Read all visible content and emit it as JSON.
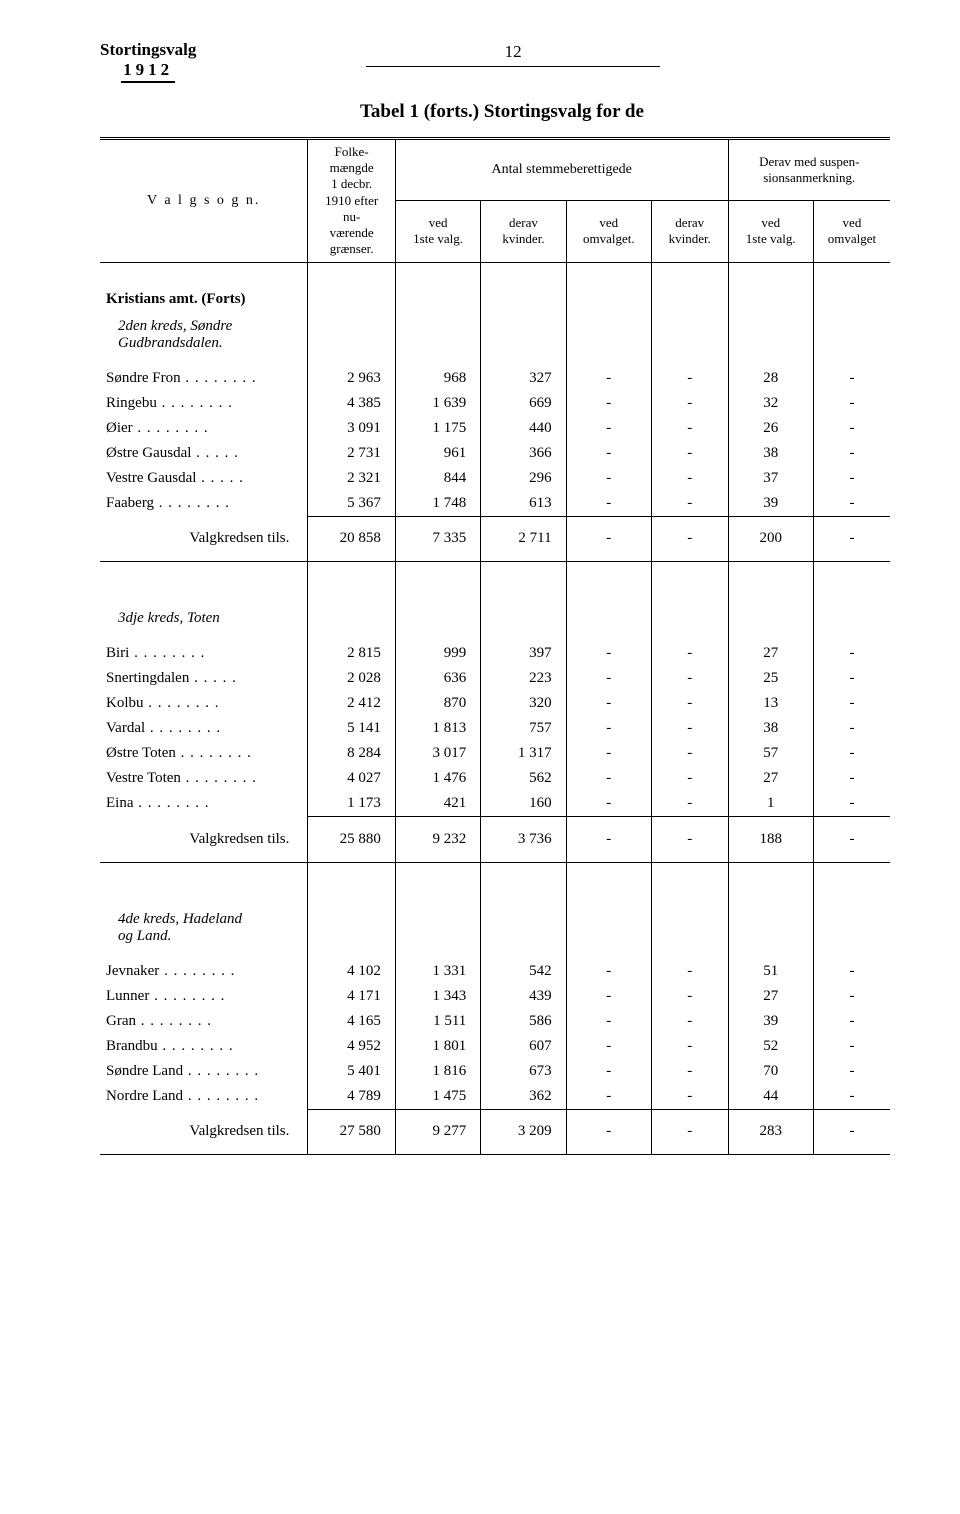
{
  "header": {
    "title_left_line1": "Stortingsvalg",
    "title_left_line2": "1912",
    "page_number": "12",
    "table_title": "Tabel 1 (forts.)  Stortingsvalg for de"
  },
  "columns": {
    "valgsogn": "V a l g s o g n.",
    "folkemaengde": "Folke-\nmængde\n1 decbr.\n1910 efter\nnu-\nværende\ngrænser.",
    "antal_header": "Antal stemmeberettigede",
    "derav_susp_header": "Derav med suspen-\nsionsanmerkning.",
    "col_a": "ved\n1ste valg.",
    "col_b": "derav\nkvinder.",
    "col_c": "ved\nomvalget.",
    "col_d": "derav\nkvinder.",
    "col_e": "ved\n1ste valg.",
    "col_f": "ved\nomvalget"
  },
  "sections": [
    {
      "heading": "Kristians amt.  (Forts)",
      "subheading": "2den kreds, Søndre\n  Gudbrandsdalen.",
      "rows": [
        {
          "label": "Søndre Fron",
          "c1": "2 963",
          "c2": "968",
          "c3": "327",
          "c4": "-",
          "c5": "-",
          "c6": "28",
          "c7": "-"
        },
        {
          "label": "Ringebu",
          "c1": "4 385",
          "c2": "1 639",
          "c3": "669",
          "c4": "-",
          "c5": "-",
          "c6": "32",
          "c7": "-"
        },
        {
          "label": "Øier",
          "c1": "3 091",
          "c2": "1 175",
          "c3": "440",
          "c4": "-",
          "c5": "-",
          "c6": "26",
          "c7": "-"
        },
        {
          "label": "Østre Gausdal",
          "c1": "2 731",
          "c2": "961",
          "c3": "366",
          "c4": "-",
          "c5": "-",
          "c6": "38",
          "c7": "-"
        },
        {
          "label": "Vestre Gausdal",
          "c1": "2 321",
          "c2": "844",
          "c3": "296",
          "c4": "-",
          "c5": "-",
          "c6": "37",
          "c7": "-"
        },
        {
          "label": "Faaberg",
          "c1": "5 367",
          "c2": "1 748",
          "c3": "613",
          "c4": "-",
          "c5": "-",
          "c6": "39",
          "c7": "-"
        }
      ],
      "tils_label": "Valgkredsen tils.",
      "tils": {
        "c1": "20 858",
        "c2": "7 335",
        "c3": "2 711",
        "c4": "-",
        "c5": "-",
        "c6": "200",
        "c7": "-"
      }
    },
    {
      "subheading": "3dje kreds, Toten",
      "rows": [
        {
          "label": "Biri",
          "c1": "2 815",
          "c2": "999",
          "c3": "397",
          "c4": "-",
          "c5": "-",
          "c6": "27",
          "c7": "-"
        },
        {
          "label": "Snertingdalen",
          "c1": "2 028",
          "c2": "636",
          "c3": "223",
          "c4": "-",
          "c5": "-",
          "c6": "25",
          "c7": "-"
        },
        {
          "label": "Kolbu",
          "c1": "2 412",
          "c2": "870",
          "c3": "320",
          "c4": "-",
          "c5": "-",
          "c6": "13",
          "c7": "-"
        },
        {
          "label": "Vardal",
          "c1": "5 141",
          "c2": "1 813",
          "c3": "757",
          "c4": "-",
          "c5": "-",
          "c6": "38",
          "c7": "-"
        },
        {
          "label": "Østre Toten",
          "c1": "8 284",
          "c2": "3 017",
          "c3": "1 317",
          "c4": "-",
          "c5": "-",
          "c6": "57",
          "c7": "-"
        },
        {
          "label": "Vestre Toten",
          "c1": "4 027",
          "c2": "1 476",
          "c3": "562",
          "c4": "-",
          "c5": "-",
          "c6": "27",
          "c7": "-"
        },
        {
          "label": "Eina",
          "c1": "1 173",
          "c2": "421",
          "c3": "160",
          "c4": "-",
          "c5": "-",
          "c6": "1",
          "c7": "-"
        }
      ],
      "tils_label": "Valgkredsen tils.",
      "tils": {
        "c1": "25 880",
        "c2": "9 232",
        "c3": "3 736",
        "c4": "-",
        "c5": "-",
        "c6": "188",
        "c7": "-"
      }
    },
    {
      "subheading": "4de kreds, Hadeland\n  og Land.",
      "rows": [
        {
          "label": "Jevnaker",
          "c1": "4 102",
          "c2": "1 331",
          "c3": "542",
          "c4": "-",
          "c5": "-",
          "c6": "51",
          "c7": "-"
        },
        {
          "label": "Lunner",
          "c1": "4 171",
          "c2": "1 343",
          "c3": "439",
          "c4": "-",
          "c5": "-",
          "c6": "27",
          "c7": "-"
        },
        {
          "label": "Gran",
          "c1": "4 165",
          "c2": "1 511",
          "c3": "586",
          "c4": "-",
          "c5": "-",
          "c6": "39",
          "c7": "-"
        },
        {
          "label": "Brandbu",
          "c1": "4 952",
          "c2": "1 801",
          "c3": "607",
          "c4": "-",
          "c5": "-",
          "c6": "52",
          "c7": "-"
        },
        {
          "label": "Søndre Land",
          "c1": "5 401",
          "c2": "1 816",
          "c3": "673",
          "c4": "-",
          "c5": "-",
          "c6": "70",
          "c7": "-"
        },
        {
          "label": "Nordre Land",
          "c1": "4 789",
          "c2": "1 475",
          "c3": "362",
          "c4": "-",
          "c5": "-",
          "c6": "44",
          "c7": "-"
        }
      ],
      "tils_label": "Valgkredsen tils.",
      "tils": {
        "c1": "27 580",
        "c2": "9 277",
        "c3": "3 209",
        "c4": "-",
        "c5": "-",
        "c6": "283",
        "c7": "-"
      }
    }
  ]
}
